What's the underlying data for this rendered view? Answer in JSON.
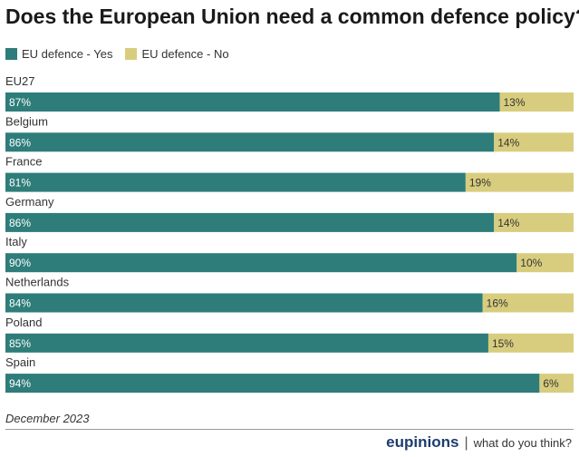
{
  "chart_data": {
    "type": "bar",
    "orientation": "horizontal",
    "stacked": true,
    "title": "Does the European Union need a common defence policy?",
    "categories": [
      "EU27",
      "Belgium",
      "France",
      "Germany",
      "Italy",
      "Netherlands",
      "Poland",
      "Spain"
    ],
    "series": [
      {
        "name": "EU defence - Yes",
        "color": "#2e7d7a",
        "values": [
          87,
          86,
          81,
          86,
          90,
          84,
          85,
          94
        ]
      },
      {
        "name": "EU defence - No",
        "color": "#d8cd7e",
        "values": [
          13,
          14,
          19,
          14,
          10,
          16,
          15,
          6
        ]
      }
    ],
    "value_suffix": "%",
    "xlim": [
      0,
      100
    ],
    "legend_position": "top-left",
    "grid": false
  },
  "footer": {
    "date": "December 2023",
    "brand": "eupinions",
    "separator": "|",
    "tagline": "what do you think?"
  }
}
